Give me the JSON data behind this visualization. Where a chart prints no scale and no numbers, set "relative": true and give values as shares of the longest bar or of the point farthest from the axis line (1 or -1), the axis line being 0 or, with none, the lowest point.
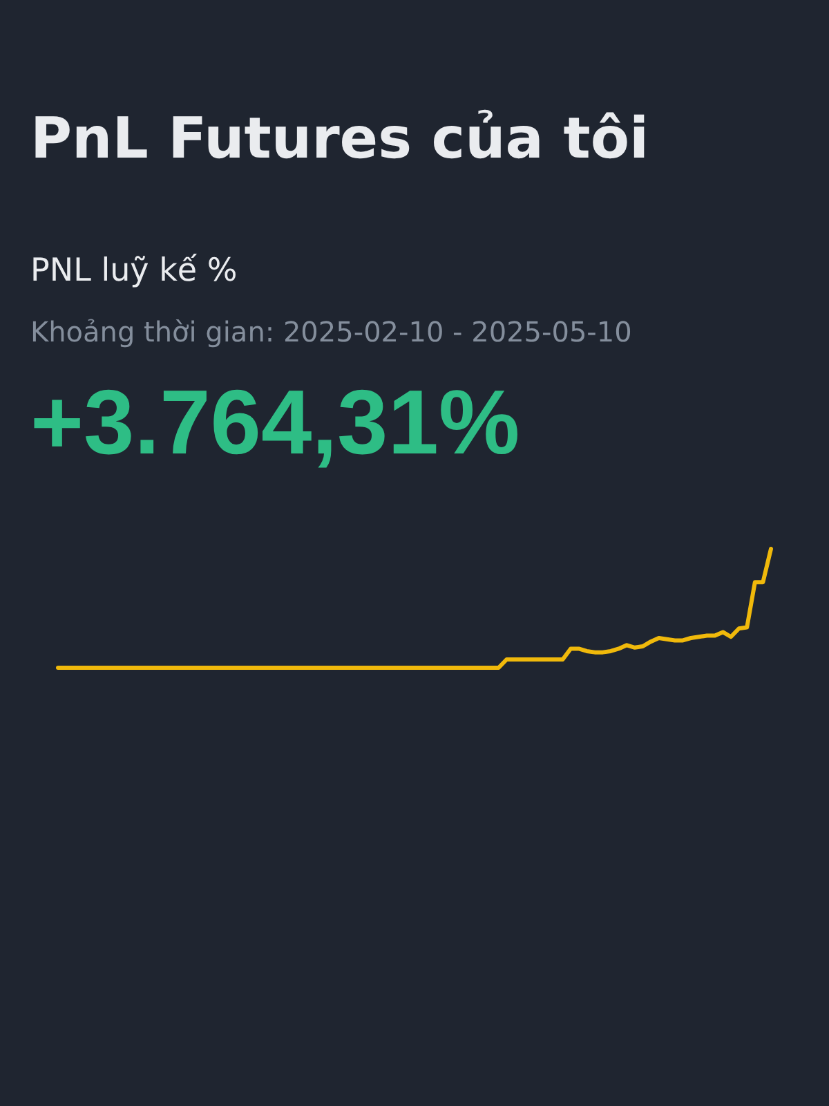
{
  "chart_data": {
    "type": "line",
    "title": "PnL Futures của tôi",
    "subtitle": "PNL luỹ kế %",
    "annotations": [
      "Khoảng thời gian: 2025-02-10 - 2025-05-10",
      "+3.764,31%"
    ],
    "relative": true,
    "categories": [
      null,
      null,
      null,
      null,
      null,
      null,
      null,
      null,
      null,
      null,
      null,
      null,
      null,
      null,
      null,
      null,
      null,
      null,
      null,
      null,
      null,
      null,
      null,
      null,
      null,
      null,
      null,
      null,
      null,
      null,
      null,
      null,
      null,
      null,
      null,
      null,
      null,
      null,
      null,
      null,
      null,
      null,
      null,
      null,
      null,
      null,
      null,
      null,
      null,
      null,
      null,
      null,
      null,
      null,
      null,
      null,
      null,
      null,
      null,
      null,
      null,
      null,
      null,
      null,
      null,
      null,
      null,
      null,
      null,
      null,
      null,
      null,
      null,
      null,
      null,
      null,
      null,
      null,
      null,
      null,
      null,
      null,
      null,
      null,
      null,
      null,
      null,
      null,
      null,
      null
    ],
    "series": [
      {
        "color": "#f0b90b",
        "values": [
          0,
          0,
          0,
          0,
          0,
          0,
          0,
          0,
          0,
          0,
          0,
          0,
          0,
          0,
          0,
          0,
          0,
          0,
          0,
          0,
          0,
          0,
          0,
          0,
          0,
          0,
          0,
          0,
          0,
          0,
          0,
          0,
          0,
          0,
          0,
          0,
          0,
          0,
          0,
          0,
          0,
          0,
          0,
          0,
          0,
          0,
          0,
          0,
          0,
          0,
          0,
          0,
          0,
          0,
          0,
          0,
          0.07,
          0.07,
          0.07,
          0.07,
          0.07,
          0.07,
          0.07,
          0.07,
          0.16,
          0.16,
          0.14,
          0.13,
          0.13,
          0.14,
          0.16,
          0.19,
          0.17,
          0.18,
          0.22,
          0.25,
          0.24,
          0.23,
          0.23,
          0.25,
          0.26,
          0.27,
          0.27,
          0.3,
          0.26,
          0.33,
          0.34,
          0.72,
          0.72,
          1
        ]
      }
    ]
  }
}
